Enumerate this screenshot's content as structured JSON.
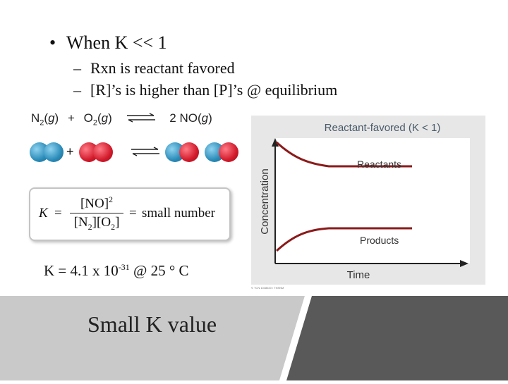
{
  "slide": {
    "bullet_symbol": "•",
    "bullet_text": "When K << 1",
    "sub_dash": "–",
    "sub_items": [
      "Rxn is reactant favored",
      "[R]’s is higher than [P]’s @ equilibrium"
    ],
    "k_value_prefix": "K = 4.1 x 10",
    "k_value_exponent": "-31",
    "k_value_suffix": " @ 25 ° C",
    "caption": "Small K value"
  },
  "reaction": {
    "equation_text": "N2(g) + O2(g) ⇌ 2 NO(g)",
    "plus_sign": "+",
    "molecule_colors": {
      "nitrogen": "#2a8bb8",
      "oxygen": "#d21a2b"
    }
  },
  "k_expression": {
    "lhs": "K",
    "numerator": "[NO]2",
    "denominator": "[N2][O2]",
    "equals": "=",
    "rhs": "small number"
  },
  "chart_data": {
    "type": "line",
    "title": "Reactant-favored (K < 1)",
    "xlabel": "Time",
    "ylabel": "Concentration",
    "grid": false,
    "series": [
      {
        "name": "Reactants",
        "shape": "decreasing to plateau",
        "color": "#8b1a1a"
      },
      {
        "name": "Products",
        "shape": "increasing to plateau",
        "color": "#8b1a1a"
      }
    ],
    "credit": "© TCN 1048620 / TNSNM"
  },
  "colors": {
    "panel_left": "#c9c9c9",
    "panel_right": "#595959",
    "chart_bg": "#e7e7e7",
    "curve": "#8b1a1a",
    "title_text": "#4a5a6a"
  }
}
